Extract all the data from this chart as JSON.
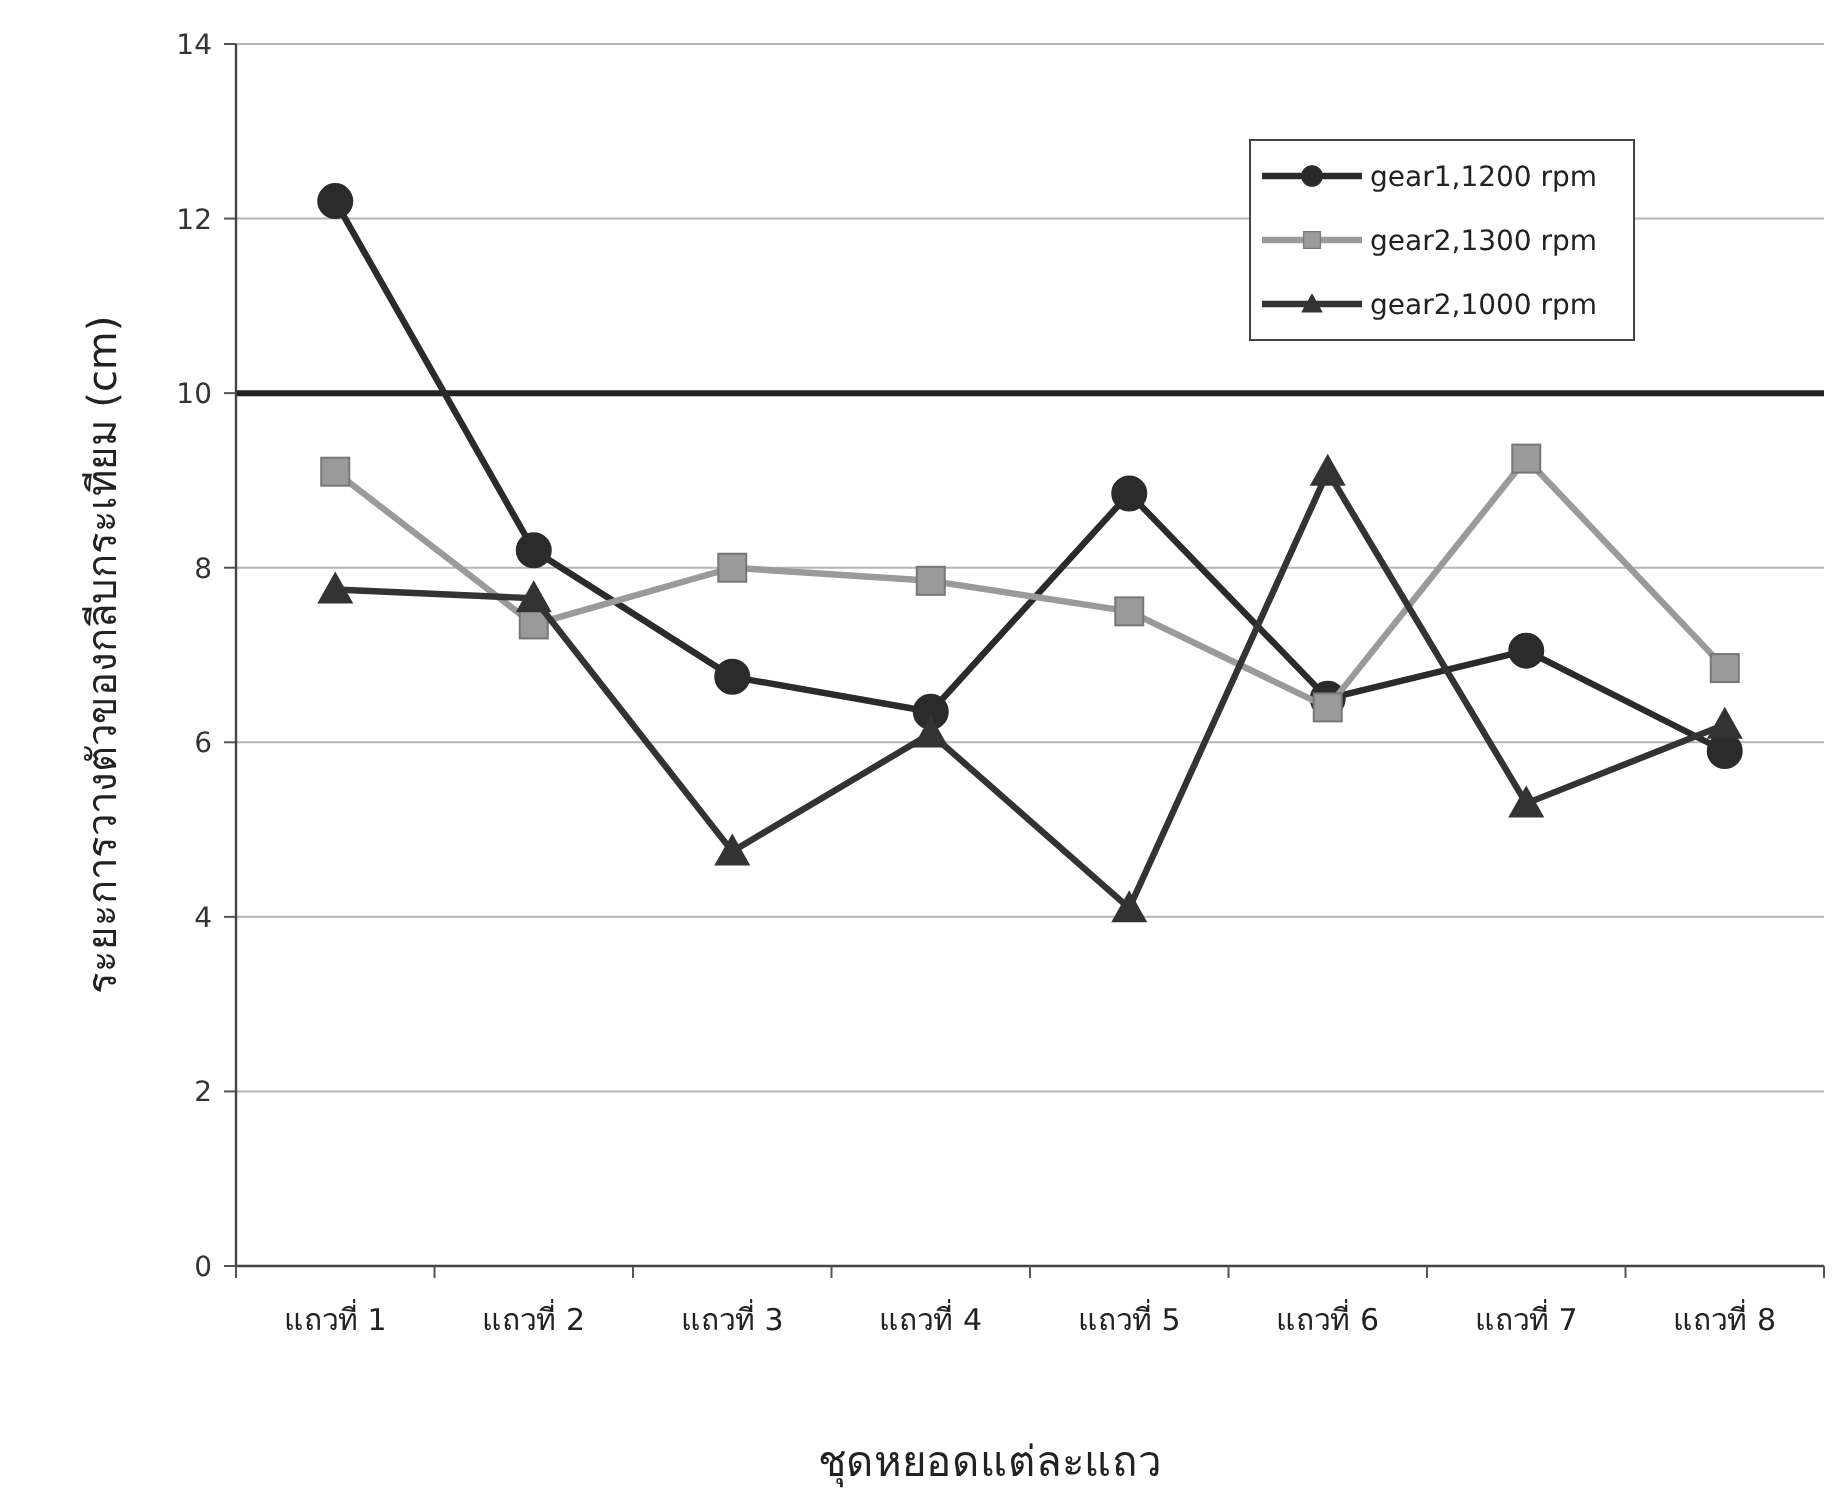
{
  "chart_data": {
    "type": "line",
    "xlabel": "ชุดหยอดแต่ละแถว",
    "ylabel": "ระยะการวางตัวของกลีบกระเทียม   (cm)",
    "categories": [
      "แถวที่ 1",
      "แถวที่ 2",
      "แถวที่ 3",
      "แถวที่ 4",
      "แถวที่ 5",
      "แถวที่ 6",
      "แถวที่ 7",
      "แถวที่ 8"
    ],
    "series": [
      {
        "name": "gear1,1200 rpm",
        "color": "#2b2b2b",
        "marker": "circle",
        "values": [
          12.2,
          8.2,
          6.75,
          6.35,
          8.85,
          6.5,
          7.05,
          5.9
        ]
      },
      {
        "name": "gear2,1300 rpm",
        "color": "#9a9a9a",
        "marker": "square",
        "values": [
          9.1,
          7.35,
          8.0,
          7.85,
          7.5,
          6.4,
          9.25,
          6.85
        ]
      },
      {
        "name": "gear2,1000 rpm",
        "color": "#333333",
        "marker": "triangle",
        "values": [
          7.75,
          7.65,
          4.75,
          6.1,
          4.1,
          9.1,
          5.3,
          6.2
        ]
      }
    ],
    "ylim": [
      0,
      14
    ],
    "yticks": [
      0,
      2,
      4,
      6,
      8,
      10,
      12,
      14
    ],
    "grid": "y",
    "legend": "top right",
    "line_style": "solid",
    "ref_lines": [
      {
        "axis": "y",
        "value": 10,
        "color": "#222222"
      }
    ]
  }
}
